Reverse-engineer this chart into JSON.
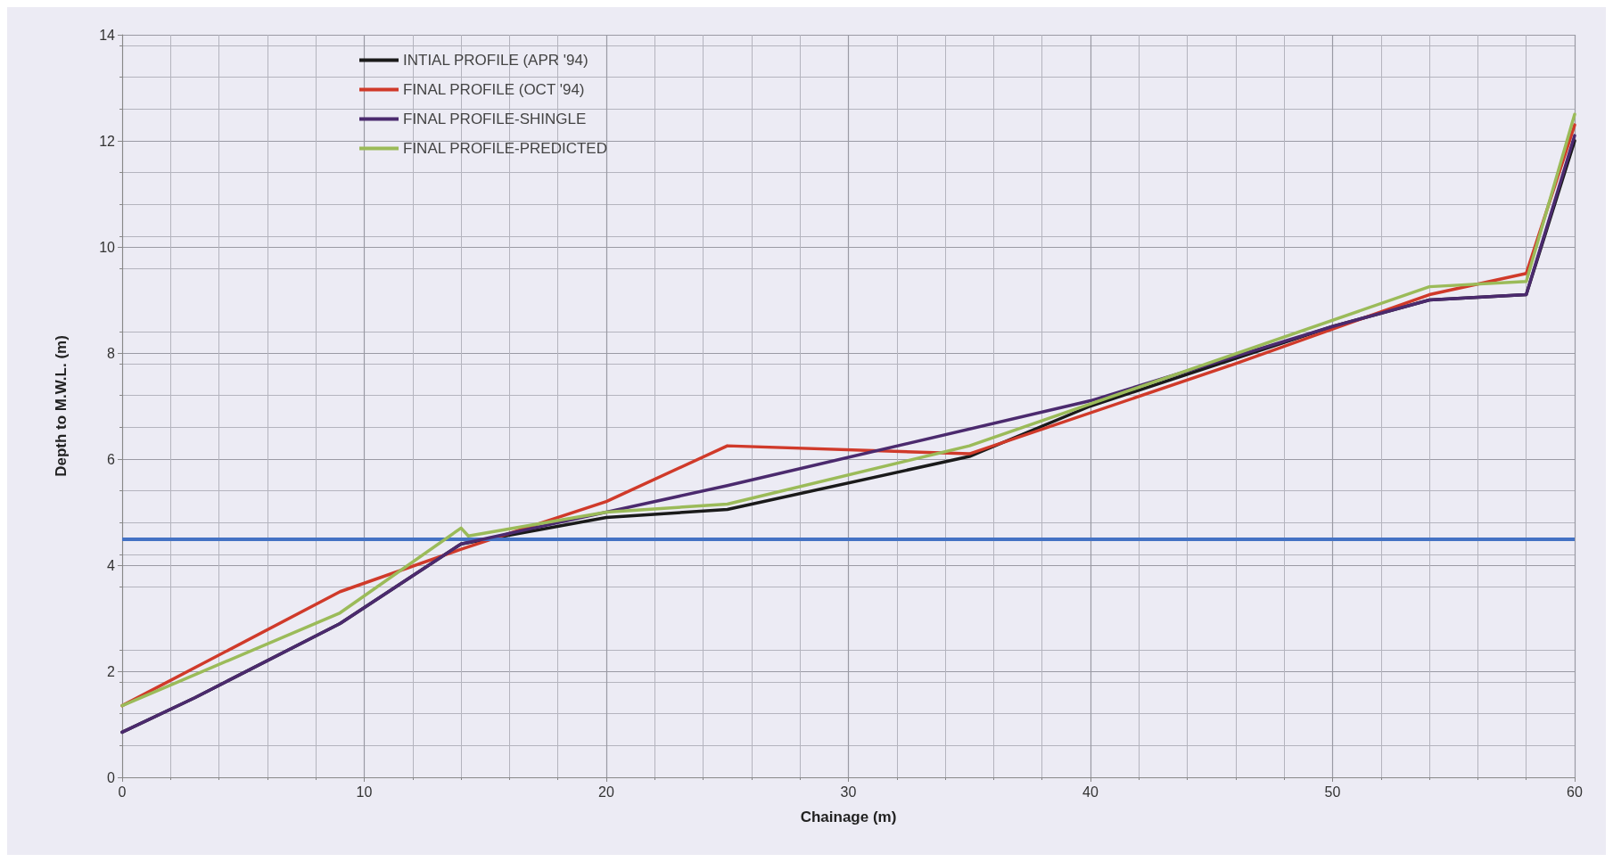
{
  "chart_data": {
    "type": "line",
    "xlabel": "Chainage (m)",
    "ylabel": "Depth to M.W.L. (m)",
    "xlim": [
      0,
      60
    ],
    "xticks": [
      0,
      10,
      20,
      30,
      40,
      50,
      60
    ],
    "ylim": [
      0,
      14
    ],
    "yticks": [
      0,
      2,
      4,
      6,
      8,
      10,
      12,
      14
    ],
    "grid": true,
    "legend": "top left",
    "marker": "none",
    "line_style": "solid",
    "series": [
      {
        "name": "INTIAL PROFILE (APR '94)",
        "color": "#1a1a1a",
        "x": [
          0,
          3,
          9,
          14,
          20,
          25,
          35,
          40,
          50,
          54,
          58,
          60
        ],
        "values": [
          0.85,
          1.5,
          2.9,
          4.4,
          4.9,
          5.05,
          6.05,
          7.0,
          8.5,
          9.0,
          9.1,
          12.0
        ]
      },
      {
        "name": "FINAL PROFILE (OCT '94)",
        "color": "#d03a2a",
        "x": [
          0,
          9,
          14,
          20,
          25,
          35,
          46,
          54,
          58,
          60
        ],
        "values": [
          1.35,
          3.5,
          4.3,
          5.2,
          6.25,
          6.1,
          7.8,
          9.1,
          9.5,
          12.3
        ]
      },
      {
        "name": "FINAL PROFILE-SHINGLE",
        "color": "#4b2a6e",
        "x": [
          0,
          3,
          9,
          14,
          18,
          25,
          40,
          50,
          54,
          58,
          60
        ],
        "values": [
          0.85,
          1.5,
          2.9,
          4.4,
          4.8,
          5.5,
          7.1,
          8.5,
          9.0,
          9.1,
          12.1
        ]
      },
      {
        "name": "FINAL PROFILE-PREDICTED",
        "color": "#9bbb59",
        "x": [
          0,
          9,
          14,
          14.3,
          20,
          25,
          35,
          54,
          58,
          60
        ],
        "values": [
          1.35,
          3.1,
          4.7,
          4.55,
          5.0,
          5.15,
          6.25,
          9.25,
          9.35,
          12.5
        ]
      }
    ],
    "ref_lines": [
      {
        "axis": "y",
        "value": 4.5,
        "color": "#4472c4"
      }
    ]
  }
}
